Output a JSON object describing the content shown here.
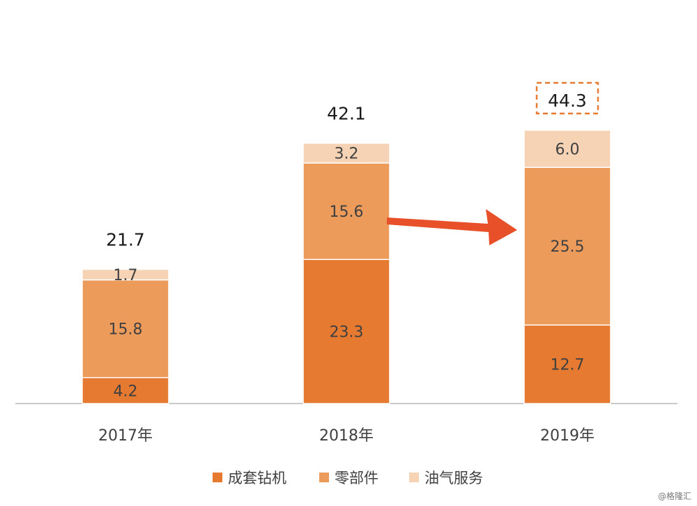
{
  "chart_data": {
    "type": "bar",
    "stacked": true,
    "categories": [
      "2017年",
      "2018年",
      "2019年"
    ],
    "series": [
      {
        "name": "成套钻机",
        "color": "#E57A30",
        "values": [
          4.2,
          23.3,
          12.7
        ],
        "labels": [
          "4.2",
          "23.3",
          "12.7"
        ]
      },
      {
        "name": "零部件",
        "color": "#EC9B5A",
        "values": [
          15.8,
          15.6,
          25.5
        ],
        "labels": [
          "15.8",
          "15.6",
          "25.5"
        ]
      },
      {
        "name": "油气服务",
        "color": "#F6D3B4",
        "values": [
          1.7,
          3.2,
          6.0
        ],
        "labels": [
          "1.7",
          "3.2",
          "6.0"
        ]
      }
    ],
    "totals": [
      "21.7",
      "42.1",
      "44.3"
    ],
    "highlighted_total_category": "2019年",
    "highlight_color": "#E57A30",
    "arrow": {
      "from": "2018年",
      "to": "2019年",
      "color": "#E8502A"
    },
    "legend_position": "bottom",
    "ylim": [
      0,
      47
    ],
    "grid": false
  },
  "watermark": "@格隆汇"
}
